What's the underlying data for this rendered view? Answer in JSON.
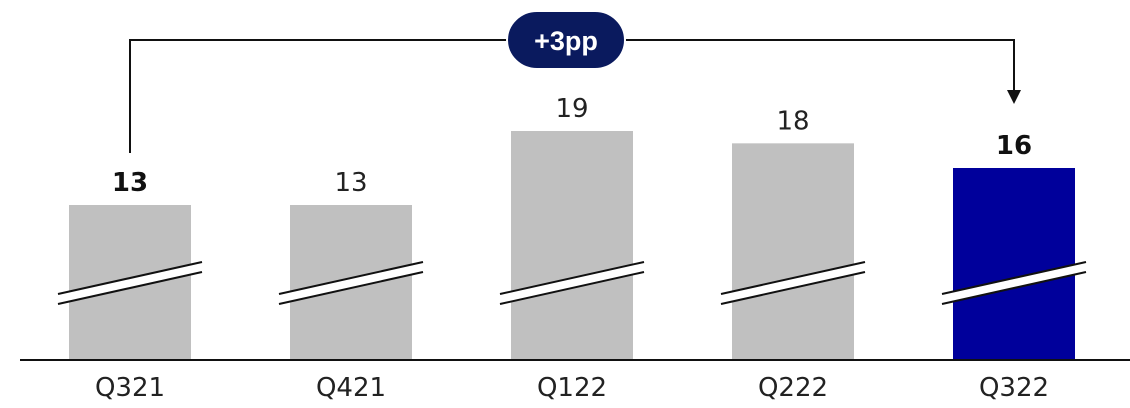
{
  "chart_data": {
    "type": "bar",
    "categories": [
      "Q321",
      "Q421",
      "Q122",
      "Q222",
      "Q322"
    ],
    "values": [
      13,
      13,
      19,
      18,
      16
    ],
    "value_labels": [
      "13",
      "13",
      "19",
      "18",
      "16"
    ],
    "bold_labels": [
      true,
      false,
      false,
      false,
      true
    ],
    "highlight_index": 4,
    "axis_break": true,
    "grid": false,
    "legend": "none",
    "title": "",
    "xlabel": "",
    "ylabel": "",
    "annotation": {
      "text": "+3pp",
      "from_category": "Q321",
      "to_category": "Q322"
    },
    "colors": {
      "bar": "#c0c0c0",
      "highlight": "#00009b",
      "badge": "#0a1a5e",
      "axis": "#111111"
    }
  }
}
